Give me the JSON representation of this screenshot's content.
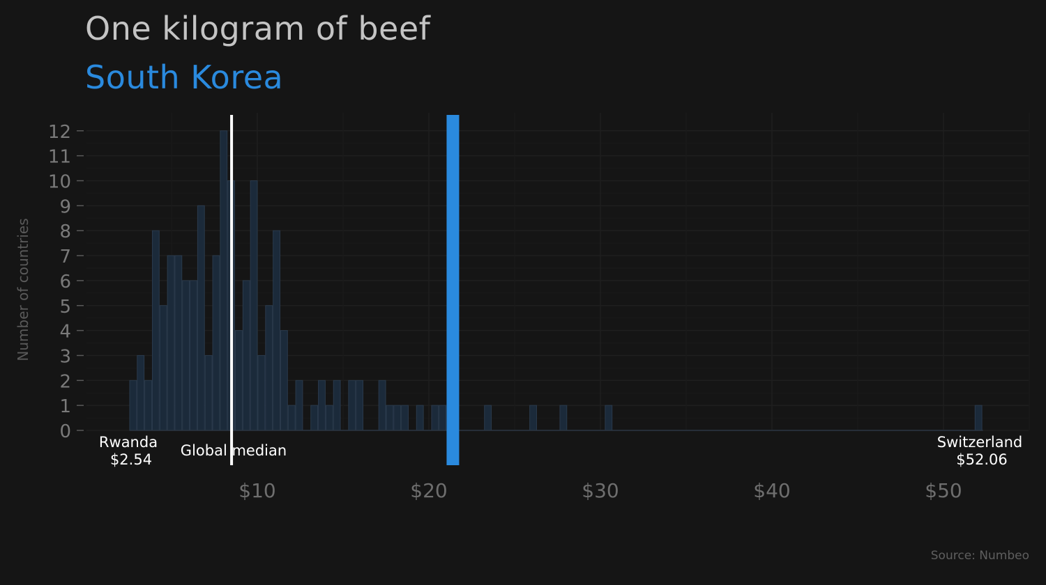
{
  "title": "One kilogram of beef",
  "subtitle": "South Korea",
  "source": "Source: Numbeo",
  "colors": {
    "background": "#151515",
    "highlight": "#2a8ade",
    "bar_fill": "#1b2a3a",
    "bar_stroke": "#2a3a4c",
    "median_line": "#ffffff"
  },
  "chart_data": {
    "type": "bar",
    "histogram": true,
    "ylabel": "Number of countries",
    "xlim": [
      0,
      54
    ],
    "ylim": [
      0,
      12
    ],
    "x_ticks": [
      10,
      20,
      30,
      40,
      50
    ],
    "x_tick_labels": [
      "$10",
      "$20",
      "$30",
      "$40",
      "$50"
    ],
    "y_ticks": [
      0,
      1,
      2,
      3,
      4,
      5,
      6,
      7,
      8,
      9,
      10,
      11,
      12
    ],
    "bin_width": 0.44,
    "bins": [
      {
        "x": 2.54,
        "count": 2
      },
      {
        "x": 2.98,
        "count": 3
      },
      {
        "x": 3.42,
        "count": 2
      },
      {
        "x": 3.86,
        "count": 8
      },
      {
        "x": 4.3,
        "count": 5
      },
      {
        "x": 4.74,
        "count": 7
      },
      {
        "x": 5.18,
        "count": 7
      },
      {
        "x": 5.62,
        "count": 6
      },
      {
        "x": 6.06,
        "count": 6
      },
      {
        "x": 6.5,
        "count": 9
      },
      {
        "x": 6.94,
        "count": 3
      },
      {
        "x": 7.38,
        "count": 7
      },
      {
        "x": 7.82,
        "count": 12
      },
      {
        "x": 8.26,
        "count": 10
      },
      {
        "x": 8.7,
        "count": 4
      },
      {
        "x": 9.14,
        "count": 6
      },
      {
        "x": 9.58,
        "count": 10
      },
      {
        "x": 10.02,
        "count": 3
      },
      {
        "x": 10.46,
        "count": 5
      },
      {
        "x": 10.9,
        "count": 8
      },
      {
        "x": 11.34,
        "count": 4
      },
      {
        "x": 11.78,
        "count": 1
      },
      {
        "x": 12.22,
        "count": 2
      },
      {
        "x": 13.1,
        "count": 1
      },
      {
        "x": 13.54,
        "count": 2
      },
      {
        "x": 13.98,
        "count": 1
      },
      {
        "x": 14.42,
        "count": 2
      },
      {
        "x": 15.3,
        "count": 2
      },
      {
        "x": 15.74,
        "count": 2
      },
      {
        "x": 17.06,
        "count": 2
      },
      {
        "x": 17.5,
        "count": 1
      },
      {
        "x": 17.94,
        "count": 1
      },
      {
        "x": 18.38,
        "count": 1
      },
      {
        "x": 19.26,
        "count": 1
      },
      {
        "x": 20.14,
        "count": 1
      },
      {
        "x": 20.58,
        "count": 1
      },
      {
        "x": 23.22,
        "count": 1
      },
      {
        "x": 25.86,
        "count": 1
      },
      {
        "x": 27.62,
        "count": 1
      },
      {
        "x": 30.26,
        "count": 1
      },
      {
        "x": 51.82,
        "count": 1
      }
    ],
    "highlight_value": 21.4,
    "highlight_label": "South Korea",
    "median_value": 8.5,
    "median_label": "Global median",
    "annotations": [
      {
        "name": "Rwanda",
        "value_label": "$2.54",
        "x": 2.54
      },
      {
        "name": "Switzerland",
        "value_label": "$52.06",
        "x": 52.06
      }
    ]
  }
}
